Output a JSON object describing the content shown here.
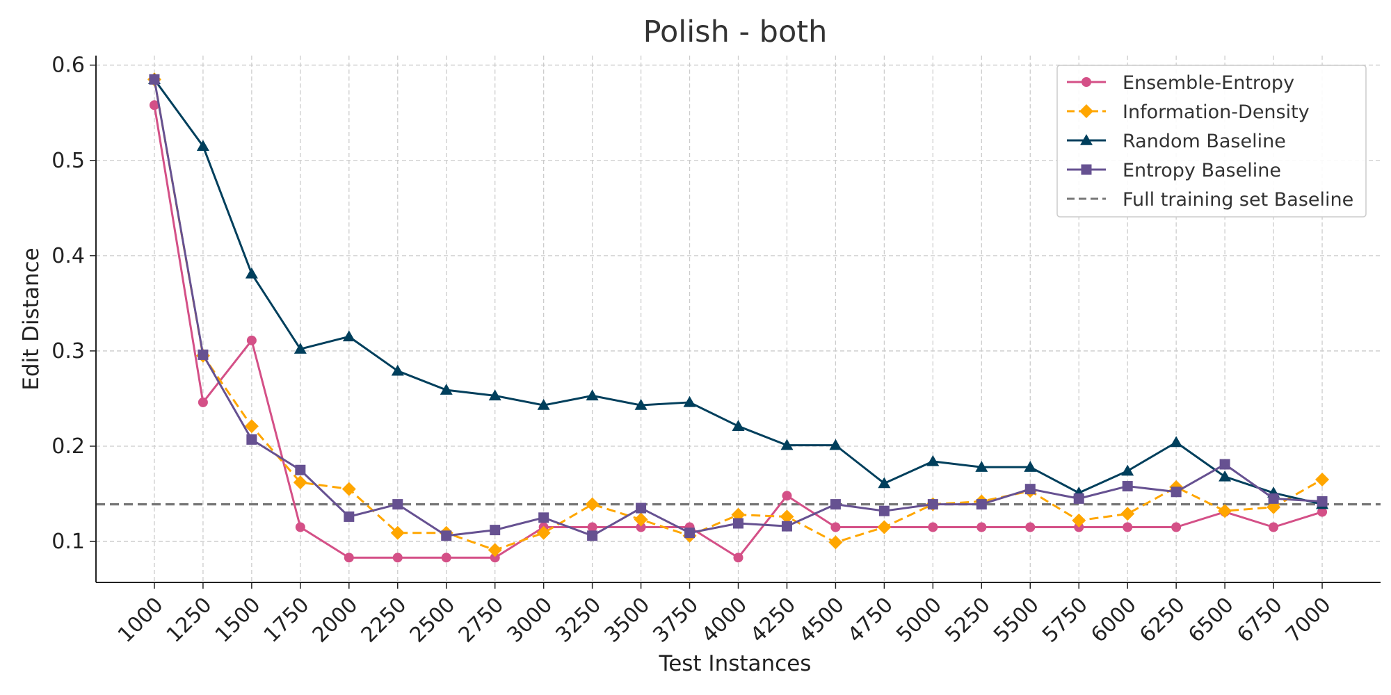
{
  "chart_data": {
    "type": "line",
    "title": "Polish - both",
    "xlabel": "Test Instances",
    "ylabel": "Edit Distance",
    "x": [
      1000,
      1250,
      1500,
      1750,
      2000,
      2250,
      2500,
      2750,
      3000,
      3250,
      3500,
      3750,
      4000,
      4250,
      4500,
      4750,
      5000,
      5250,
      5500,
      5750,
      6000,
      6250,
      6500,
      6750,
      7000
    ],
    "x_tick_labels": [
      "1000",
      "1250",
      "1500",
      "1750",
      "2000",
      "2250",
      "2500",
      "2750",
      "3000",
      "3250",
      "3500",
      "3750",
      "4000",
      "4250",
      "4500",
      "4750",
      "5000",
      "5250",
      "5500",
      "5750",
      "6000",
      "6250",
      "6500",
      "6750",
      "7000"
    ],
    "y_ticks": [
      0.1,
      0.2,
      0.3,
      0.4,
      0.5,
      0.6
    ],
    "y_tick_labels": [
      "0.1",
      "0.2",
      "0.3",
      "0.4",
      "0.5",
      "0.6"
    ],
    "ylim": [
      0.057,
      0.61
    ],
    "xlim": [
      700,
      7300
    ],
    "grid": true,
    "legend_position": "top-right",
    "series": [
      {
        "name": "Ensemble-Entropy",
        "color": "#d45087",
        "marker": "circle",
        "line_style": "solid",
        "values": [
          0.558,
          0.246,
          0.311,
          0.115,
          0.083,
          0.083,
          0.083,
          0.083,
          0.115,
          0.115,
          0.115,
          0.115,
          0.083,
          0.148,
          0.115,
          0.115,
          0.115,
          0.115,
          0.115,
          0.115,
          0.115,
          0.115,
          0.131,
          0.115,
          0.131
        ]
      },
      {
        "name": "Information-Density",
        "color": "#ffa600",
        "marker": "diamond",
        "line_style": "dashed",
        "values": [
          0.585,
          0.295,
          0.221,
          0.162,
          0.155,
          0.109,
          0.109,
          0.091,
          0.109,
          0.139,
          0.123,
          0.106,
          0.128,
          0.126,
          0.099,
          0.115,
          0.139,
          0.142,
          0.153,
          0.122,
          0.129,
          0.157,
          0.132,
          0.136,
          0.165
        ]
      },
      {
        "name": "Random Baseline",
        "color": "#003f5c",
        "marker": "triangle",
        "line_style": "solid",
        "values": [
          0.585,
          0.515,
          0.381,
          0.302,
          0.315,
          0.279,
          0.259,
          0.253,
          0.243,
          0.253,
          0.243,
          0.246,
          0.221,
          0.201,
          0.201,
          0.161,
          0.184,
          0.178,
          0.178,
          0.151,
          0.174,
          0.204,
          0.168,
          0.151,
          0.139
        ]
      },
      {
        "name": "Entropy Baseline",
        "color": "#665191",
        "marker": "square",
        "line_style": "solid",
        "values": [
          0.585,
          0.296,
          0.207,
          0.175,
          0.126,
          0.139,
          0.106,
          0.112,
          0.125,
          0.106,
          0.135,
          0.109,
          0.119,
          0.116,
          0.139,
          0.132,
          0.139,
          0.139,
          0.155,
          0.145,
          0.158,
          0.152,
          0.181,
          0.145,
          0.142
        ]
      },
      {
        "name": "Full training set Baseline",
        "color": "#777777",
        "marker": "none",
        "line_style": "dashed",
        "constant": 0.139
      }
    ]
  }
}
